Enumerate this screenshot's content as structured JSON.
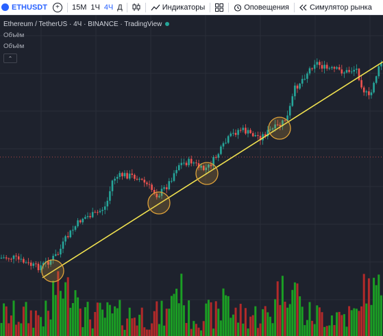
{
  "toolbar": {
    "symbol": "ETHUSDT",
    "add_icon": "plus-circle-icon",
    "timeframes": [
      "15М",
      "1Ч",
      "4Ч",
      "Д"
    ],
    "active_timeframe_index": 2,
    "chart_type_icon": "candles-icon",
    "indicators_label": "Индикаторы",
    "layouts_icon": "grid-icon",
    "alerts_label": "Оповещения",
    "replay_label": "Симулятор рынка"
  },
  "legend": {
    "title": "Ethereum / TetherUS · 4Ч · BINANCE · TradingView",
    "volume_label_1": "Объём",
    "volume_label_2": "Объём",
    "collapse_icon": "chevron-up-icon"
  },
  "colors": {
    "background": "#1e222d",
    "up": "#26a69a",
    "down": "#ef5350",
    "volume_up": "#1b9e24",
    "volume_down": "#b22a2a",
    "trendline": "#f2e350",
    "highlight_circle": "#e0a33a"
  },
  "chart_data": {
    "type": "candlestick",
    "trendline": true,
    "touch_points": 4
  }
}
